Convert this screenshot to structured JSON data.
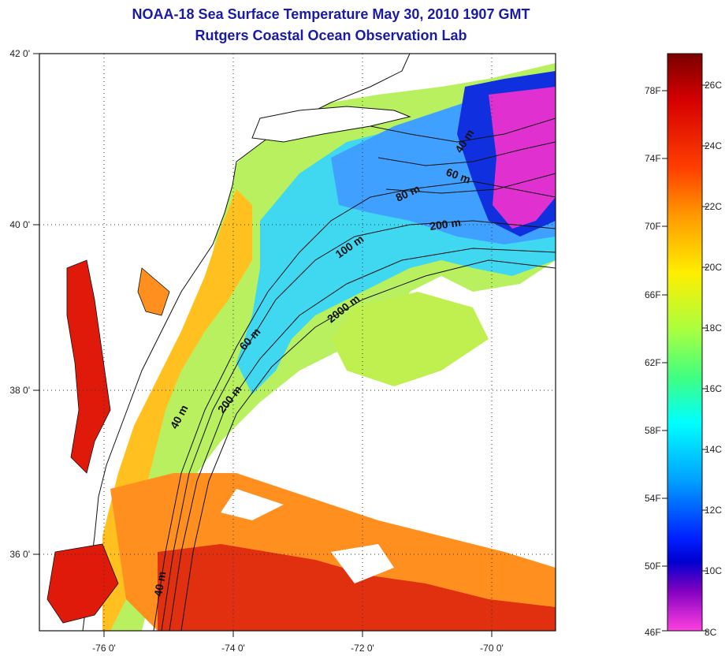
{
  "title": {
    "line1": "NOAA-18 Sea Surface Temperature May 30, 2010 1907 GMT",
    "line2": "Rutgers Coastal Ocean Observation Lab"
  },
  "axes": {
    "lon_ticks": [
      "-76 0'",
      "-74 0'",
      "-72 0'",
      "-70 0'"
    ],
    "lat_ticks": [
      "42 0'",
      "40 0'",
      "38 0'",
      "36 0'"
    ]
  },
  "contours": [
    "40 m",
    "60 m",
    "80 m",
    "100 m",
    "200 m",
    "2000 m",
    "60 m",
    "200 m",
    "40 m",
    "40 m"
  ],
  "colorbar": {
    "fahrenheit": [
      "78F",
      "74F",
      "70F",
      "66F",
      "62F",
      "58F",
      "54F",
      "50F",
      "46F"
    ],
    "celsius": [
      "26C",
      "24C",
      "22C",
      "20C",
      "18C",
      "16C",
      "14C",
      "12C",
      "10C",
      "8C"
    ],
    "colors": [
      "#8b0000",
      "#d40000",
      "#ff4000",
      "#ff9900",
      "#ffee00",
      "#c8ff30",
      "#40ff80",
      "#00ffff",
      "#00a8ff",
      "#0040ff",
      "#0000e0",
      "#8000c0",
      "#ff40e0"
    ]
  },
  "palette": {
    "title": "#1a1aa8",
    "land": "#ffffff",
    "warm": "#e01000",
    "hot": "#b00000",
    "orange": "#ff8000",
    "yellow": "#ffd000",
    "green": "#a0f060",
    "cyan": "#30e0e0",
    "blue": "#3080ff",
    "deepblue": "#1020e0",
    "magenta": "#e020d0"
  }
}
